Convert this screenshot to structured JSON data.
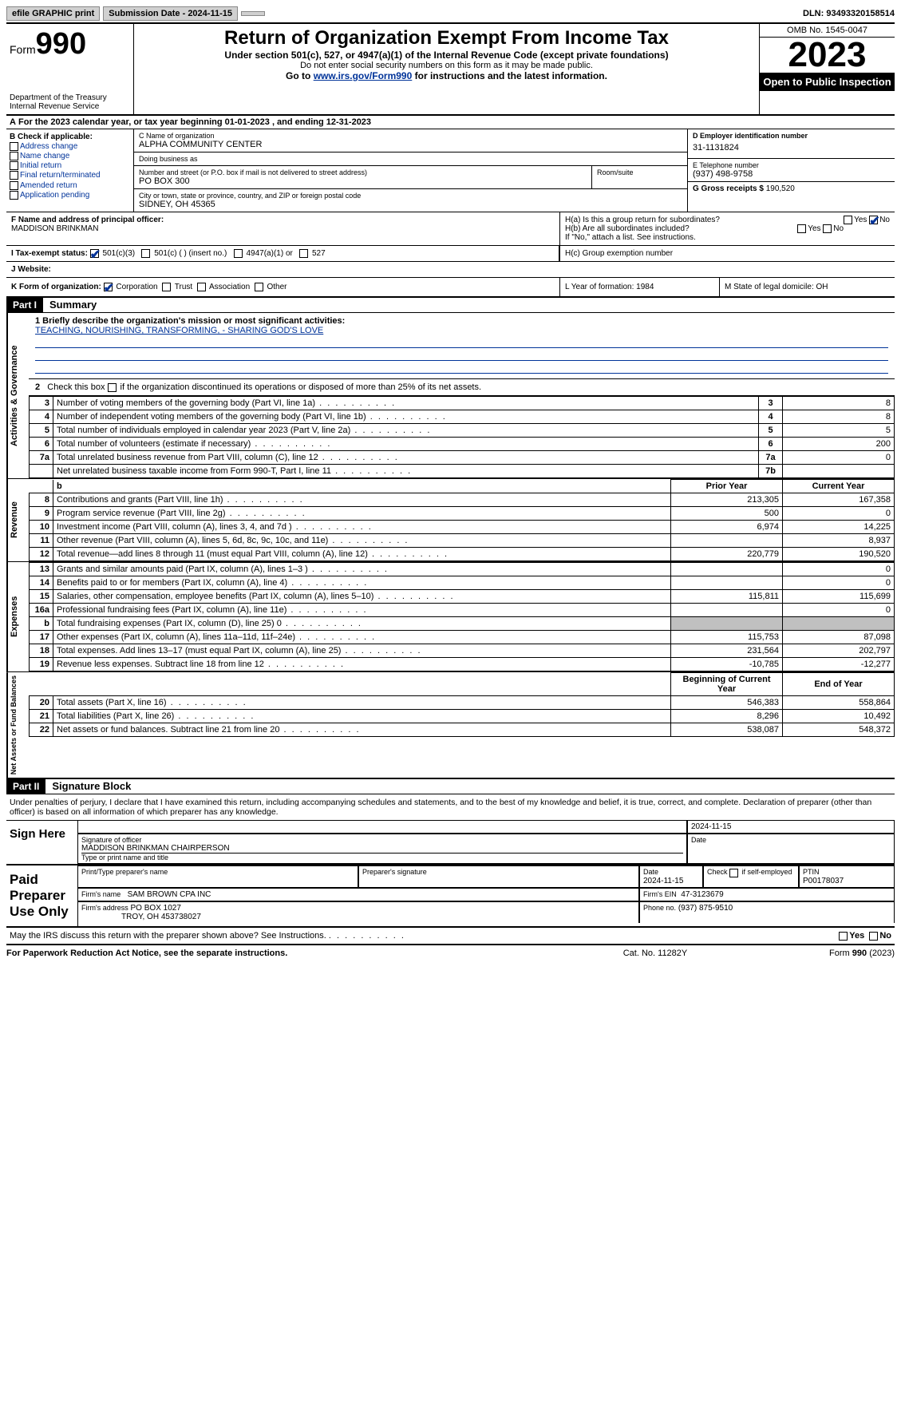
{
  "topbar": {
    "efile_label": "efile GRAPHIC print",
    "submission_label": "Submission Date - 2024-11-15",
    "dln_label": "DLN: 93493320158514"
  },
  "header": {
    "form_prefix": "Form",
    "form_number": "990",
    "dept": "Department of the Treasury\nInternal Revenue Service",
    "title": "Return of Organization Exempt From Income Tax",
    "sub": "Under section 501(c), 527, or 4947(a)(1) of the Internal Revenue Code (except private foundations)",
    "sub2": "Do not enter social security numbers on this form as it may be made public.",
    "goto_pre": "Go to ",
    "goto_link": "www.irs.gov/Form990",
    "goto_post": " for instructions and the latest information.",
    "omb": "OMB No. 1545-0047",
    "year": "2023",
    "open_pub": "Open to Public Inspection"
  },
  "rowA": "For the 2023 calendar year, or tax year beginning 01-01-2023    , and ending 12-31-2023",
  "boxB": {
    "title": "B Check if applicable:",
    "items": [
      "Address change",
      "Name change",
      "Initial return",
      "Final return/terminated",
      "Amended return",
      "Application pending"
    ]
  },
  "boxC": {
    "name_lbl": "C Name of organization",
    "name": "ALPHA COMMUNITY CENTER",
    "dba_lbl": "Doing business as",
    "dba": "",
    "street_lbl": "Number and street (or P.O. box if mail is not delivered to street address)",
    "street": "PO BOX 300",
    "room_lbl": "Room/suite",
    "city_lbl": "City or town, state or province, country, and ZIP or foreign postal code",
    "city": "SIDNEY, OH  45365"
  },
  "boxD": {
    "lbl": "D Employer identification number",
    "val": "31-1131824"
  },
  "boxE": {
    "lbl": "E Telephone number",
    "val": "(937) 498-9758"
  },
  "boxG": {
    "lbl": "G Gross receipts $",
    "val": "190,520"
  },
  "boxF": {
    "lbl": "F  Name and address of principal officer:",
    "val": "MADDISON BRINKMAN"
  },
  "boxH": {
    "ha": "H(a)  Is this a group return for subordinates?",
    "hb": "H(b)  Are all subordinates included?",
    "hb_note": "If \"No,\" attach a list. See instructions.",
    "hc": "H(c)  Group exemption number",
    "yes": "Yes",
    "no": "No"
  },
  "boxI": {
    "lbl": "I   Tax-exempt status:",
    "opts": [
      "501(c)(3)",
      "501(c) (  ) (insert no.)",
      "4947(a)(1) or",
      "527"
    ]
  },
  "boxJ": {
    "lbl": "J   Website: "
  },
  "boxK": {
    "lbl": "K Form of organization:",
    "opts": [
      "Corporation",
      "Trust",
      "Association",
      "Other"
    ]
  },
  "boxL": {
    "lbl": "L Year of formation: 1984"
  },
  "boxM": {
    "lbl": "M State of legal domicile: OH"
  },
  "partI": {
    "hdr": "Part I",
    "title": "Summary"
  },
  "mission": {
    "lbl": "1   Briefly describe the organization's mission or most significant activities:",
    "text": "TEACHING, NOURISHING, TRANSFORMING, - SHARING GOD'S LOVE"
  },
  "line2": "2    Check this box       if the organization discontinued its operations or disposed of more than 25% of its net assets.",
  "gov_rows": [
    {
      "n": "3",
      "t": "Number of voting members of the governing body (Part VI, line 1a)",
      "b": "3",
      "v": "8"
    },
    {
      "n": "4",
      "t": "Number of independent voting members of the governing body (Part VI, line 1b)",
      "b": "4",
      "v": "8"
    },
    {
      "n": "5",
      "t": "Total number of individuals employed in calendar year 2023 (Part V, line 2a)",
      "b": "5",
      "v": "5"
    },
    {
      "n": "6",
      "t": "Total number of volunteers (estimate if necessary)",
      "b": "6",
      "v": "200"
    },
    {
      "n": "7a",
      "t": "Total unrelated business revenue from Part VIII, column (C), line 12",
      "b": "7a",
      "v": "0"
    },
    {
      "n": "",
      "t": "Net unrelated business taxable income from Form 990-T, Part I, line 11",
      "b": "7b",
      "v": ""
    }
  ],
  "rev_hdr": {
    "b": "b",
    "py": "Prior Year",
    "cy": "Current Year"
  },
  "rev_rows": [
    {
      "n": "8",
      "t": "Contributions and grants (Part VIII, line 1h)",
      "py": "213,305",
      "cy": "167,358"
    },
    {
      "n": "9",
      "t": "Program service revenue (Part VIII, line 2g)",
      "py": "500",
      "cy": "0"
    },
    {
      "n": "10",
      "t": "Investment income (Part VIII, column (A), lines 3, 4, and 7d )",
      "py": "6,974",
      "cy": "14,225"
    },
    {
      "n": "11",
      "t": "Other revenue (Part VIII, column (A), lines 5, 6d, 8c, 9c, 10c, and 11e)",
      "py": "",
      "cy": "8,937"
    },
    {
      "n": "12",
      "t": "Total revenue—add lines 8 through 11 (must equal Part VIII, column (A), line 12)",
      "py": "220,779",
      "cy": "190,520"
    }
  ],
  "exp_rows": [
    {
      "n": "13",
      "t": "Grants and similar amounts paid (Part IX, column (A), lines 1–3 )",
      "py": "",
      "cy": "0"
    },
    {
      "n": "14",
      "t": "Benefits paid to or for members (Part IX, column (A), line 4)",
      "py": "",
      "cy": "0"
    },
    {
      "n": "15",
      "t": "Salaries, other compensation, employee benefits (Part IX, column (A), lines 5–10)",
      "py": "115,811",
      "cy": "115,699"
    },
    {
      "n": "16a",
      "t": "Professional fundraising fees (Part IX, column (A), line 11e)",
      "py": "",
      "cy": "0"
    },
    {
      "n": "b",
      "t": "Total fundraising expenses (Part IX, column (D), line 25) 0",
      "py": "grey",
      "cy": "grey"
    },
    {
      "n": "17",
      "t": "Other expenses (Part IX, column (A), lines 11a–11d, 11f–24e)",
      "py": "115,753",
      "cy": "87,098"
    },
    {
      "n": "18",
      "t": "Total expenses. Add lines 13–17 (must equal Part IX, column (A), line 25)",
      "py": "231,564",
      "cy": "202,797"
    },
    {
      "n": "19",
      "t": "Revenue less expenses. Subtract line 18 from line 12",
      "py": "-10,785",
      "cy": "-12,277"
    }
  ],
  "na_hdr": {
    "py": "Beginning of Current Year",
    "cy": "End of Year"
  },
  "na_rows": [
    {
      "n": "20",
      "t": "Total assets (Part X, line 16)",
      "py": "546,383",
      "cy": "558,864"
    },
    {
      "n": "21",
      "t": "Total liabilities (Part X, line 26)",
      "py": "8,296",
      "cy": "10,492"
    },
    {
      "n": "22",
      "t": "Net assets or fund balances. Subtract line 21 from line 20",
      "py": "538,087",
      "cy": "548,372"
    }
  ],
  "side_labels": {
    "gov": "Activities & Governance",
    "rev": "Revenue",
    "exp": "Expenses",
    "na": "Net Assets or Fund Balances"
  },
  "partII": {
    "hdr": "Part II",
    "title": "Signature Block"
  },
  "sig_intro": "Under penalties of perjury, I declare that I have examined this return, including accompanying schedules and statements, and to the best of my knowledge and belief, it is true, correct, and complete. Declaration of preparer (other than officer) is based on all information of which preparer has any knowledge.",
  "sign_here": {
    "lbl": "Sign Here",
    "date": "2024-11-15",
    "sig_lbl": "Signature of officer",
    "name": "MADDISON BRINKMAN  CHAIRPERSON",
    "type_lbl": "Type or print name and title",
    "date_lbl": "Date"
  },
  "paid_prep": {
    "lbl": "Paid Preparer Use Only",
    "name_lbl": "Print/Type preparer's name",
    "sig_lbl": "Preparer's signature",
    "date_lbl": "Date",
    "date": "2024-11-15",
    "check_lbl": "Check         if self-employed",
    "ptin_lbl": "PTIN",
    "ptin": "P00178037",
    "firm_lbl": "Firm's name",
    "firm": "SAM BROWN CPA INC",
    "ein_lbl": "Firm's EIN",
    "ein": "47-3123679",
    "addr_lbl": "Firm's address",
    "addr1": "PO BOX 1027",
    "addr2": "TROY, OH  453738027",
    "phone_lbl": "Phone no.",
    "phone": "(937) 875-9510"
  },
  "discuss": "May the IRS discuss this return with the preparer shown above? See Instructions.",
  "footer": {
    "l": "For Paperwork Reduction Act Notice, see the separate instructions.",
    "m": "Cat. No. 11282Y",
    "r": "Form 990 (2023)"
  }
}
